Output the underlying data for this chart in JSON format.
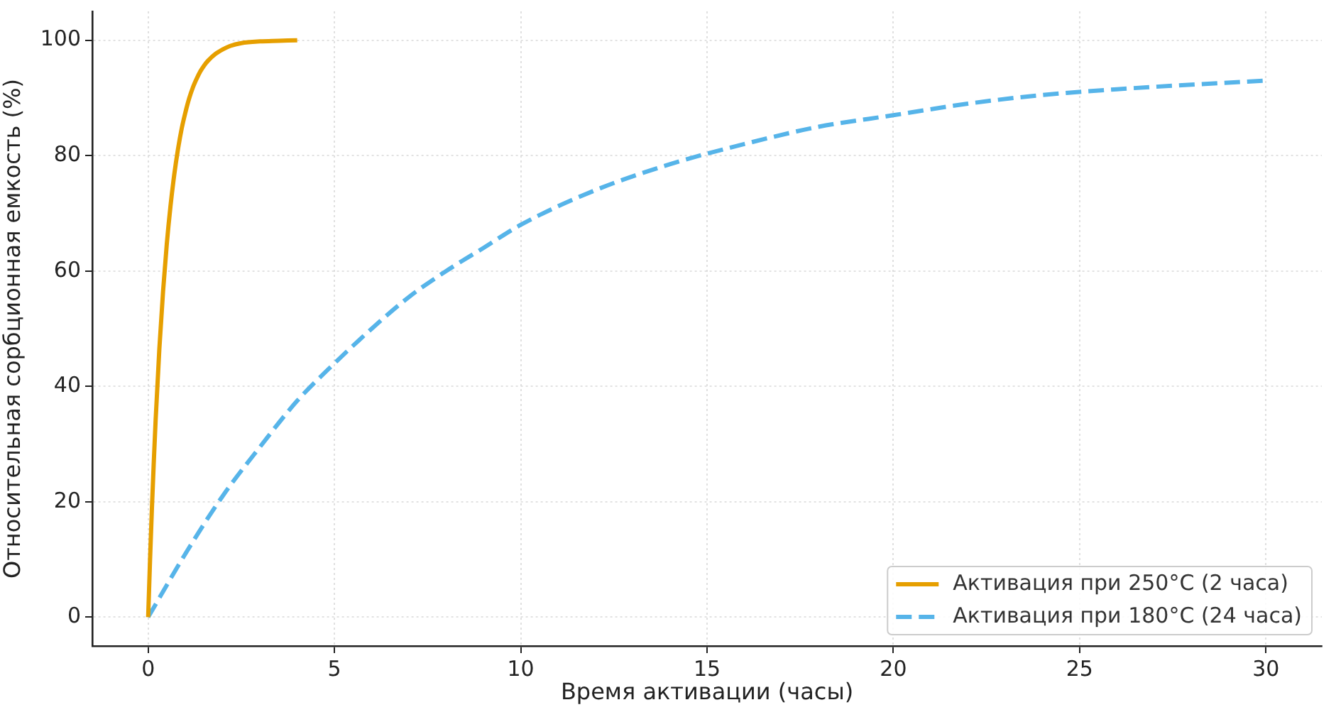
{
  "chart_data": {
    "type": "line",
    "xlabel": "Время активации (часы)",
    "ylabel": "Относительная сорбционная емкость (%)",
    "xlim": [
      -1.5,
      31.5
    ],
    "ylim": [
      -5,
      105
    ],
    "xticks": [
      0,
      5,
      10,
      15,
      20,
      25,
      30
    ],
    "yticks": [
      0,
      20,
      40,
      60,
      80,
      100
    ],
    "grid": true,
    "legend": "bottom right",
    "marker": "none",
    "series": [
      {
        "name": "Активация при 250°C (2 часа)",
        "color": "#e69f00",
        "line_style": "solid",
        "x": [
          0,
          0.05,
          0.1,
          0.15,
          0.2,
          0.3,
          0.4,
          0.5,
          0.6,
          0.7,
          0.8,
          0.9,
          1.0,
          1.1,
          1.2,
          1.3,
          1.4,
          1.5,
          1.6,
          1.8,
          2.0,
          2.2,
          2.5,
          3.0,
          3.5,
          4.0
        ],
        "values": [
          0,
          9.9,
          18.8,
          26.8,
          34.1,
          46.5,
          56.5,
          64.7,
          71.3,
          76.7,
          81.1,
          84.7,
          87.5,
          89.9,
          91.8,
          93.3,
          94.6,
          95.6,
          96.4,
          97.6,
          98.4,
          99,
          99.5,
          99.8,
          99.9,
          100
        ]
      },
      {
        "name": "Активация при 180°C (24 часа)",
        "color": "#56b4e9",
        "line_style": "dashed",
        "x": [
          0,
          1,
          2,
          3,
          4,
          5,
          6,
          7,
          8,
          9,
          10,
          12,
          14,
          16,
          18,
          20,
          22,
          24,
          26,
          28,
          30
        ],
        "values": [
          0,
          11,
          21,
          29.5,
          37.5,
          44,
          50,
          55.5,
          60,
          64,
          68,
          74,
          78.5,
          82,
          85,
          87,
          89,
          90.5,
          91.5,
          92.3,
          93
        ]
      }
    ]
  }
}
